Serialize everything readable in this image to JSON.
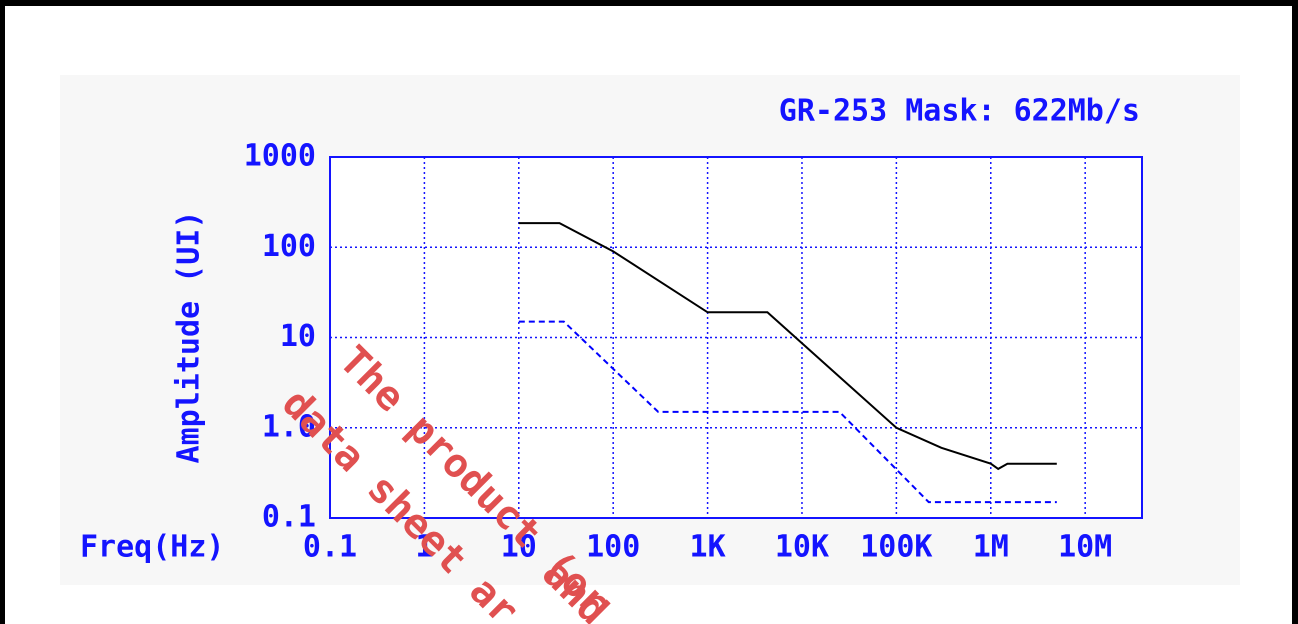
{
  "chart_data": {
    "type": "line",
    "title": "GR-253 Mask: 622Mb/s",
    "x_label": "Freq(Hz)",
    "y_label": "Amplitude (UI)",
    "log_x": true,
    "log_y": true,
    "grid": true,
    "xlim": [
      0.1,
      40000000
    ],
    "ylim": [
      0.1,
      1000
    ],
    "xticks": [
      0.1,
      1,
      10,
      100,
      {
        "value": 1000,
        "label": "1K"
      },
      {
        "value": 10000,
        "label": "10K"
      },
      {
        "value": 100000,
        "label": "100K"
      },
      {
        "value": 1000000,
        "label": "1M"
      },
      {
        "value": 10000000,
        "label": "10M"
      }
    ],
    "yticks": [
      0.1,
      {
        "value": 1,
        "label": "1.0"
      },
      10,
      100,
      1000
    ],
    "series": [
      {
        "color": "#000000",
        "dash": false,
        "x": [
          10,
          27,
          100,
          1000,
          4300,
          100000,
          300000,
          1000000,
          1200000,
          1500000,
          5000000
        ],
        "values": [
          185,
          185,
          90,
          19,
          19,
          1.0,
          0.6,
          0.4,
          0.35,
          0.4,
          0.4
        ]
      },
      {
        "color": "#0000ff",
        "dash": true,
        "x": [
          10,
          30,
          300,
          25000,
          220000,
          5000000
        ],
        "values": [
          15,
          15,
          1.5,
          1.5,
          0.15,
          0.15
        ]
      }
    ],
    "watermark": [
      "The product (or",
      "data sheet ar",
      "and"
    ]
  }
}
